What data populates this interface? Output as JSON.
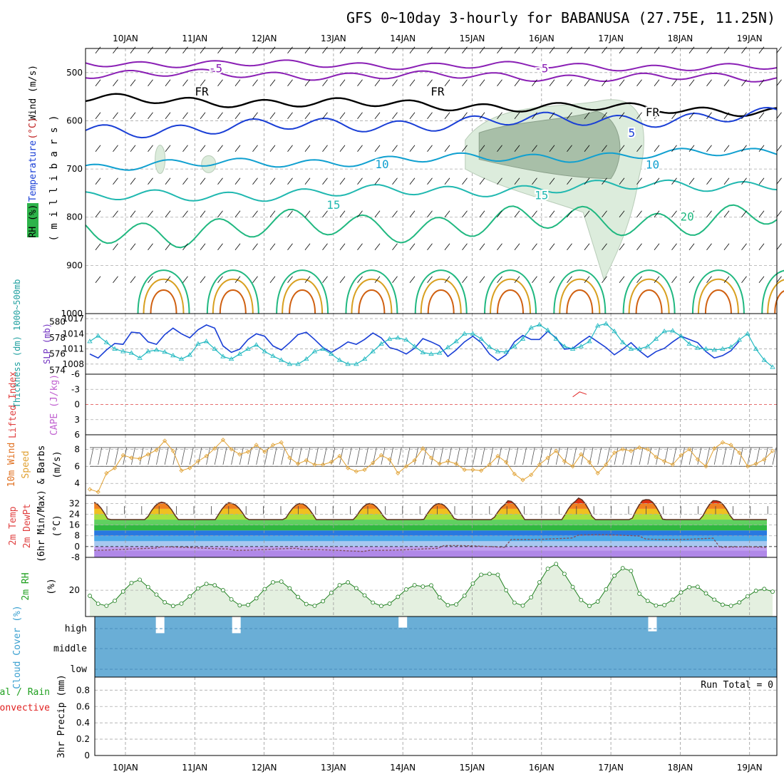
{
  "title": "GFS 0~10day 3-hourly for BABANUSA (27.75E, 11.25N)",
  "date_labels": [
    "10JAN",
    "11JAN",
    "12JAN",
    "13JAN",
    "14JAN",
    "15JAN",
    "16JAN",
    "17JAN",
    "18JAN",
    "19JAN"
  ],
  "run_total_label": "Run Total = 0",
  "colors": {
    "purple": "#8a1fb5",
    "black": "#000000",
    "blue": "#1a3fd6",
    "cyan": "#10a0d0",
    "teal": "#20b8b0",
    "green_teal": "#20b880",
    "orange": "#d8a020",
    "dark_orange": "#d06010",
    "thickness": "#1a3fd6",
    "slp": "#20b8c0",
    "wind_speed": "#e0a030",
    "rh": "#208020",
    "cloud": "#6aaed6",
    "precip_green": "#20a020",
    "precip_red": "#e02020"
  },
  "chart_data": [
    {
      "type": "contour",
      "panel": "upper-air cross-section",
      "ylabel_parts": [
        "RH (%)",
        "Temperature",
        "(°C)",
        "Wind (m/s)",
        "( m i l l i b a r s )"
      ],
      "yticks": [
        500,
        600,
        700,
        800,
        900,
        1000
      ],
      "ylim": [
        1000,
        450
      ],
      "contour_labels": [
        {
          "text": "-5",
          "day": 1.3,
          "p": 492,
          "color": "purple"
        },
        {
          "text": "-5",
          "day": 6.0,
          "p": 492,
          "color": "purple"
        },
        {
          "text": "FR",
          "day": 1.1,
          "p": 540,
          "color": "black"
        },
        {
          "text": "FR",
          "day": 4.5,
          "p": 540,
          "color": "black"
        },
        {
          "text": "FR",
          "day": 7.6,
          "p": 583,
          "color": "black"
        },
        {
          "text": "5",
          "day": 7.3,
          "p": 626,
          "color": "blue"
        },
        {
          "text": "10",
          "day": 3.7,
          "p": 691,
          "color": "cyan"
        },
        {
          "text": "10",
          "day": 7.6,
          "p": 692,
          "color": "cyan"
        },
        {
          "text": "15",
          "day": 3.0,
          "p": 775,
          "color": "teal"
        },
        {
          "text": "15",
          "day": 6.0,
          "p": 755,
          "color": "teal"
        },
        {
          "text": "20",
          "day": 8.1,
          "p": 800,
          "color": "green_teal"
        }
      ]
    },
    {
      "type": "line",
      "panel": "thickness and slp",
      "ylabel_left": "Thickness (dm) 1000~500mb",
      "ylabel_right": "SLP (mb)",
      "yticks_thickness": [
        574,
        576,
        578,
        580
      ],
      "yticks_slp": [
        1008,
        1011,
        1014,
        1017
      ],
      "thickness": [
        576.0,
        575.5,
        576.5,
        577.3,
        577.2,
        578.7,
        578.6,
        577.5,
        577.2,
        578.4,
        579.2,
        578.5,
        578.0,
        579.0,
        579.6,
        579.2,
        577.0,
        576.2,
        576.6,
        577.8,
        578.5,
        578.2,
        577.0,
        576.5,
        577.4,
        578.4,
        578.7,
        577.8,
        576.8,
        576.2,
        576.8,
        577.5,
        577.2,
        577.8,
        578.6,
        578.0,
        576.8,
        576.5,
        576.0,
        576.7,
        577.9,
        577.5,
        577.0,
        575.7,
        576.5,
        577.5,
        578.2,
        577.4,
        576.0,
        575.2,
        575.9,
        577.5,
        578.3,
        577.8,
        577.8,
        578.8,
        578.0,
        576.6,
        576.7,
        577.5,
        578.2,
        577.5,
        576.8,
        575.9,
        576.6,
        577.4,
        576.4,
        575.6,
        576.3,
        576.7,
        577.5,
        578.2,
        577.8,
        577.4,
        576.3,
        575.5,
        575.8,
        576.4,
        577.6
      ],
      "slp": [
        1012.5,
        1013.6,
        1012.3,
        1011.0,
        1010.5,
        1010.2,
        1009.2,
        1010.5,
        1010.8,
        1010.4,
        1009.7,
        1009.0,
        1009.8,
        1012.0,
        1012.5,
        1011.0,
        1009.5,
        1009.0,
        1010.0,
        1011.0,
        1011.8,
        1010.5,
        1009.6,
        1008.8,
        1008.0,
        1008.0,
        1009.0,
        1010.5,
        1011.0,
        1010.0,
        1008.8,
        1008.0,
        1008.0,
        1009.0,
        1010.5,
        1012.0,
        1013.0,
        1013.2,
        1012.8,
        1011.5,
        1010.3,
        1010.0,
        1010.2,
        1011.3,
        1012.5,
        1014.0,
        1014.0,
        1013.0,
        1011.4,
        1010.5,
        1010.4,
        1011.5,
        1013.0,
        1015.2,
        1015.8,
        1014.7,
        1013.0,
        1011.5,
        1011.0,
        1011.5,
        1012.5,
        1015.6,
        1016.0,
        1014.5,
        1012.3,
        1011.0,
        1011.0,
        1011.5,
        1013.0,
        1014.5,
        1014.6,
        1013.5,
        1012.0,
        1011.2,
        1011.0,
        1010.8,
        1011.0,
        1011.4,
        1012.8,
        1014.0,
        1011.0,
        1008.8,
        1007.4
      ]
    },
    {
      "type": "line",
      "panel": "lifted index and cape",
      "ylabel_parts": [
        "Lifted Index",
        "CAPE (J/kg)"
      ],
      "yticks": [
        -6,
        -3,
        0,
        3,
        6
      ],
      "ylim": [
        6,
        -6
      ],
      "cape_segment": [
        {
          "day": 6.45,
          "value": -1.5
        },
        {
          "day": 6.55,
          "value": -2.5
        },
        {
          "day": 6.65,
          "value": -2.0
        }
      ]
    },
    {
      "type": "line",
      "panel": "10m wind",
      "ylabel_parts": [
        "10m Wind",
        "Speed",
        "& Barbs",
        "(m/s)"
      ],
      "yticks": [
        4,
        6,
        8
      ],
      "ylim": [
        2.6,
        9.7
      ],
      "speed": [
        3.3,
        3.0,
        5.2,
        5.8,
        7.3,
        7.0,
        6.9,
        7.4,
        7.9,
        9.0,
        7.8,
        5.5,
        5.8,
        6.6,
        7.2,
        8.1,
        9.1,
        8.0,
        7.4,
        7.7,
        8.5,
        7.7,
        8.5,
        8.8,
        7.0,
        6.3,
        6.7,
        6.2,
        6.2,
        6.5,
        7.2,
        5.8,
        5.4,
        5.6,
        6.4,
        7.3,
        6.8,
        5.2,
        6.0,
        6.7,
        8.1,
        7.0,
        6.3,
        6.6,
        6.3,
        5.6,
        5.6,
        5.5,
        6.2,
        7.2,
        6.5,
        5.1,
        4.4,
        5.0,
        6.2,
        7.0,
        7.8,
        6.6,
        6.0,
        7.4,
        6.5,
        5.2,
        6.2,
        7.6,
        8.0,
        7.8,
        8.2,
        8.0,
        7.1,
        6.6,
        6.2,
        7.3,
        8.0,
        6.8,
        6.0,
        8.1,
        8.8,
        8.5,
        7.6,
        6.0,
        6.3,
        6.8,
        7.8
      ]
    },
    {
      "type": "area",
      "panel": "2m temperature",
      "ylabel_parts": [
        "2m Temp",
        "2m DewPt",
        "(6hr Min/Max)",
        "(°C)"
      ],
      "yticks": [
        -8,
        0,
        8,
        16,
        24,
        32
      ],
      "ylim": [
        -8,
        38
      ],
      "temp_min": 20,
      "temp_max": [
        33,
        33,
        32,
        32,
        32,
        32,
        34,
        36,
        35,
        34
      ],
      "dewpoint": [
        -2,
        -1,
        -2,
        -3,
        -2,
        0,
        6,
        8,
        6,
        -1
      ]
    },
    {
      "type": "area",
      "panel": "2m rh",
      "ylabel_parts": [
        "2m RH",
        "(%)"
      ],
      "yticks": [
        20
      ],
      "ylim": [
        0,
        45
      ],
      "rh_min": 8,
      "rh_max": [
        28,
        25,
        27,
        26,
        24,
        33,
        40,
        37,
        23,
        21
      ]
    },
    {
      "type": "bar",
      "panel": "cloud cover",
      "ylabel": "Cloud Cover (%)",
      "categories": [
        "high",
        "middle",
        "low"
      ],
      "high_breaks": [
        {
          "day": 0.5,
          "value": 0.9
        },
        {
          "day": 1.6,
          "value": 0.9
        },
        {
          "day": 4.0,
          "value": 0.6
        },
        {
          "day": 7.6,
          "value": 0.8
        }
      ]
    },
    {
      "type": "bar",
      "panel": "precipitation",
      "ylabel_parts": [
        "Total / Rain",
        "Convective",
        "3hr Precip (mm)"
      ],
      "yticks": [
        0,
        0.2,
        0.4,
        0.6,
        0.8
      ],
      "ylim": [
        0,
        0.96
      ],
      "values": []
    }
  ]
}
